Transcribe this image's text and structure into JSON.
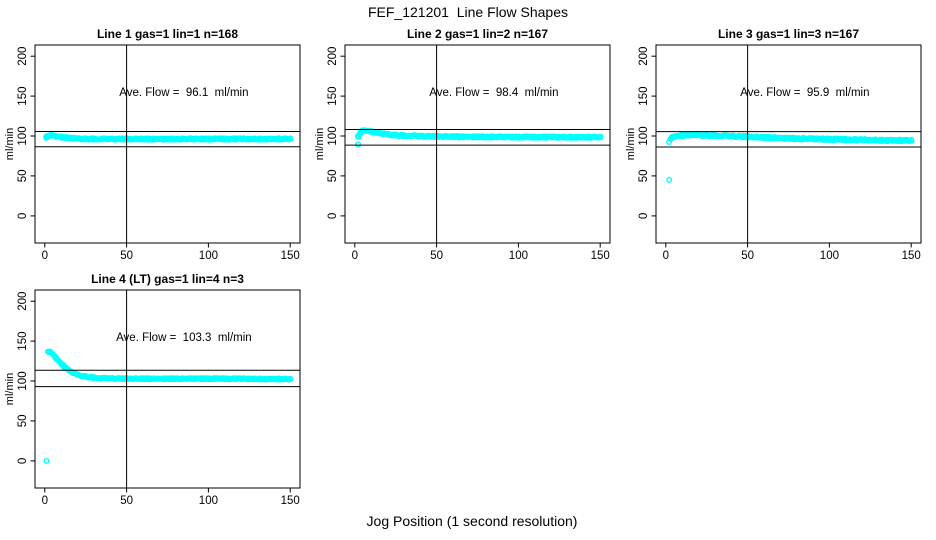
{
  "page": {
    "title": "FEF_121201  Line Flow Shapes",
    "xlabel": "Jog Position (1 second resolution)"
  },
  "chart_data": [
    {
      "type": "scatter",
      "title": "Line 1 gas=1 lin=1 n=168",
      "annotation": "Ave. Flow =  96.1  ml/min",
      "ave_flow_ml_min": 96.1,
      "n_curves": 168,
      "ylabel": "ml/min",
      "xlim": [
        -6,
        156
      ],
      "ylim": [
        -34,
        214
      ],
      "xticks": [
        0,
        50,
        100,
        150
      ],
      "yticks": [
        0,
        50,
        100,
        150,
        200
      ],
      "vline_x": 50,
      "hlines_y": [
        105.7,
        86.5
      ],
      "marker_color": "#00ffff",
      "band_width": 2.2,
      "profile_xy": [
        [
          1,
          98.3
        ],
        [
          2,
          100.2
        ],
        [
          3,
          100.9
        ],
        [
          5,
          100.6
        ],
        [
          8,
          99.4
        ],
        [
          12,
          98.0
        ],
        [
          16,
          97.1
        ],
        [
          22,
          96.6
        ],
        [
          30,
          96.3
        ],
        [
          45,
          96.2
        ],
        [
          70,
          96.2
        ],
        [
          100,
          96.3
        ],
        [
          130,
          96.3
        ],
        [
          150,
          96.4
        ]
      ],
      "outliers_xy": []
    },
    {
      "type": "scatter",
      "title": "Line 2 gas=1 lin=2 n=167",
      "annotation": "Ave. Flow =  98.4  ml/min",
      "ave_flow_ml_min": 98.4,
      "n_curves": 167,
      "ylabel": "ml/min",
      "xlim": [
        -6,
        156
      ],
      "ylim": [
        -34,
        214
      ],
      "xticks": [
        0,
        50,
        100,
        150
      ],
      "yticks": [
        0,
        50,
        100,
        150,
        200
      ],
      "vline_x": 50,
      "hlines_y": [
        108.2,
        88.6
      ],
      "marker_color": "#00ffff",
      "band_width": 2.2,
      "profile_xy": [
        [
          2,
          99.8
        ],
        [
          3,
          102.5
        ],
        [
          4,
          105.0
        ],
        [
          5,
          106.6
        ],
        [
          7,
          106.8
        ],
        [
          9,
          106.0
        ],
        [
          12,
          104.6
        ],
        [
          16,
          103.0
        ],
        [
          22,
          101.6
        ],
        [
          30,
          100.5
        ],
        [
          45,
          99.6
        ],
        [
          70,
          99.0
        ],
        [
          100,
          98.7
        ],
        [
          150,
          98.6
        ]
      ],
      "outliers_xy": [
        [
          2,
          89.5
        ]
      ]
    },
    {
      "type": "scatter",
      "title": "Line 3 gas=1 lin=3 n=167",
      "annotation": "Ave. Flow =  95.9  ml/min",
      "ave_flow_ml_min": 95.9,
      "n_curves": 167,
      "ylabel": "ml/min",
      "xlim": [
        -6,
        156
      ],
      "ylim": [
        -34,
        214
      ],
      "xticks": [
        0,
        50,
        100,
        150
      ],
      "yticks": [
        0,
        50,
        100,
        150,
        200
      ],
      "vline_x": 50,
      "hlines_y": [
        105.5,
        86.3
      ],
      "marker_color": "#00ffff",
      "band_width": 2.6,
      "profile_xy": [
        [
          3,
          96.5
        ],
        [
          4,
          98.0
        ],
        [
          6,
          99.6
        ],
        [
          9,
          100.7
        ],
        [
          14,
          101.2
        ],
        [
          20,
          101.2
        ],
        [
          28,
          100.7
        ],
        [
          35,
          100.2
        ],
        [
          45,
          99.4
        ],
        [
          60,
          98.2
        ],
        [
          80,
          96.9
        ],
        [
          100,
          95.9
        ],
        [
          120,
          95.1
        ],
        [
          135,
          94.7
        ],
        [
          150,
          94.4
        ]
      ],
      "outliers_xy": [
        [
          2,
          45
        ],
        [
          2,
          92.5
        ]
      ]
    },
    {
      "type": "scatter",
      "title": "Line 4 (LT) gas=1 lin=4 n=3",
      "annotation": "Ave. Flow =  103.3  ml/min",
      "ave_flow_ml_min": 103.3,
      "n_curves": 3,
      "ylabel": "ml/min",
      "xlim": [
        -6,
        156
      ],
      "ylim": [
        -34,
        214
      ],
      "xticks": [
        0,
        50,
        100,
        150
      ],
      "yticks": [
        0,
        50,
        100,
        150,
        200
      ],
      "vline_x": 50,
      "hlines_y": [
        113.6,
        93.0
      ],
      "marker_color": "#00ffff",
      "band_width": 1.8,
      "profile_xy": [
        [
          2,
          136.8
        ],
        [
          3,
          137.2
        ],
        [
          4,
          135.6
        ],
        [
          5,
          133.4
        ],
        [
          6,
          130.8
        ],
        [
          8,
          126.2
        ],
        [
          10,
          121.8
        ],
        [
          12,
          117.6
        ],
        [
          14,
          114.2
        ],
        [
          16,
          111.4
        ],
        [
          18,
          109.2
        ],
        [
          20,
          107.8
        ],
        [
          23,
          106.2
        ],
        [
          26,
          105.2
        ],
        [
          30,
          104.3
        ],
        [
          35,
          103.6
        ],
        [
          40,
          103.3
        ],
        [
          50,
          103.0
        ],
        [
          70,
          102.9
        ],
        [
          100,
          103.0
        ],
        [
          125,
          102.8
        ],
        [
          150,
          102.4
        ]
      ],
      "outliers_xy": [
        [
          1,
          0
        ]
      ]
    }
  ]
}
